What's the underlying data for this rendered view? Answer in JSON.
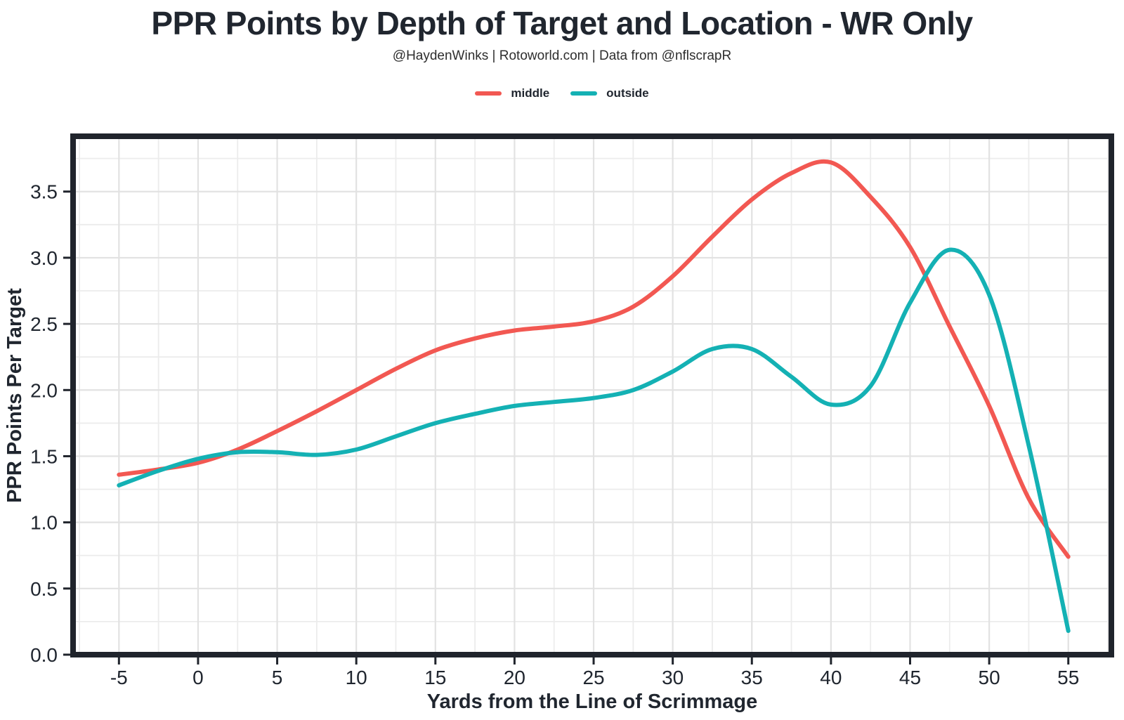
{
  "title": "PPR Points by Depth of Target and Location - WR Only",
  "subtitle": "@HaydenWinks | Rotoworld.com | Data from @nflscrapR",
  "legend": {
    "items": [
      {
        "label": "middle",
        "color": "#F25852"
      },
      {
        "label": "outside",
        "color": "#14B1B4"
      }
    ]
  },
  "chart_data": {
    "type": "line",
    "title": "PPR Points by Depth of Target and Location - WR Only",
    "subtitle": "@HaydenWinks | Rotoworld.com | Data from @nflscrapR",
    "xlabel": "Yards from the Line of Scrimmage",
    "ylabel": "PPR Points Per Target",
    "legend_position": "top",
    "grid": {
      "major": true,
      "minor": true
    },
    "xlim": [
      -7.9,
      57.72
    ],
    "ylim": [
      0,
      3.918
    ],
    "xticks": [
      -5,
      0,
      5,
      10,
      15,
      20,
      25,
      30,
      35,
      40,
      45,
      50,
      55
    ],
    "yticks": [
      0.0,
      0.5,
      1.0,
      1.5,
      2.0,
      2.5,
      3.0,
      3.5
    ],
    "ytick_decimals": 1,
    "x": [
      -5,
      -2.5,
      0,
      2.5,
      5,
      7.5,
      10,
      12.5,
      15,
      17.5,
      20,
      22.5,
      25,
      27.5,
      30,
      32.5,
      35,
      37.5,
      40,
      42.5,
      45,
      47.5,
      50,
      52.5,
      55
    ],
    "series": [
      {
        "name": "middle",
        "color": "#F25852",
        "values": [
          1.36,
          1.4,
          1.45,
          1.55,
          1.69,
          1.84,
          2.0,
          2.16,
          2.3,
          2.39,
          2.45,
          2.48,
          2.52,
          2.63,
          2.86,
          3.16,
          3.44,
          3.64,
          3.72,
          3.46,
          3.08,
          2.48,
          1.88,
          1.18,
          0.74
        ]
      },
      {
        "name": "outside",
        "color": "#14B1B4",
        "values": [
          1.28,
          1.39,
          1.48,
          1.53,
          1.53,
          1.51,
          1.55,
          1.65,
          1.75,
          1.82,
          1.88,
          1.91,
          1.94,
          2.0,
          2.14,
          2.31,
          2.31,
          2.1,
          1.89,
          2.03,
          2.66,
          3.06,
          2.72,
          1.58,
          0.18
        ]
      }
    ]
  },
  "style_colors": {
    "text_dark": "#20262F",
    "grid_major": "#E2E2E2",
    "grid_minor": "#ECECEC",
    "panel_border": "#20242C",
    "background": "#FFFFFF"
  }
}
